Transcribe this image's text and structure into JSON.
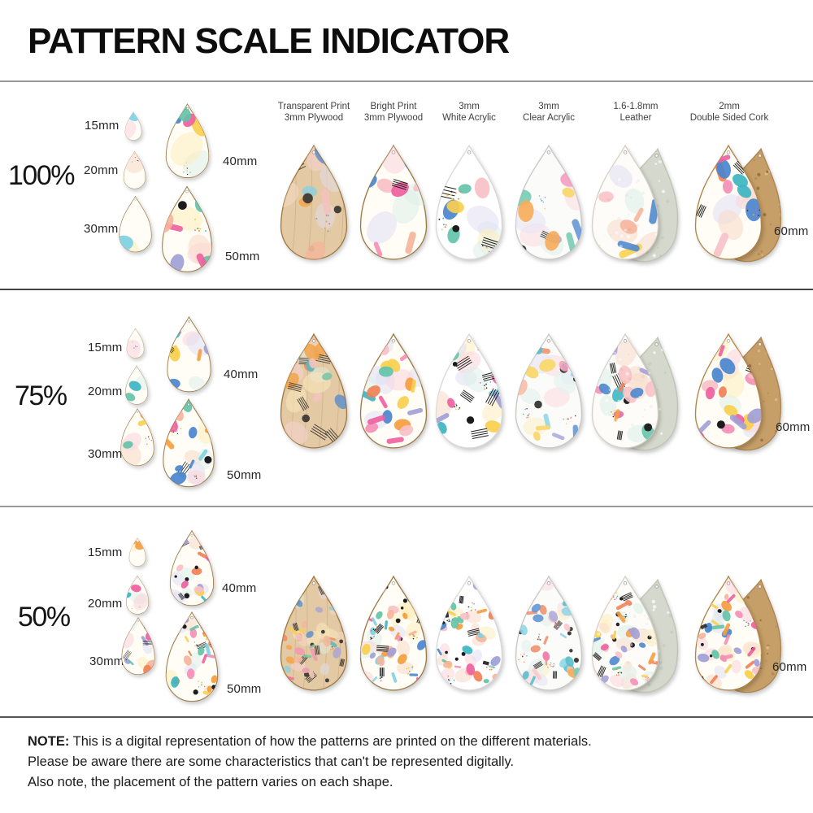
{
  "title": "PATTERN SCALE INDICATOR",
  "materials": [
    {
      "id": "transparent-plywood",
      "line1": "Transparent Print",
      "line2": "3mm Plywood"
    },
    {
      "id": "bright-plywood",
      "line1": "Bright Print",
      "line2": "3mm Plywood"
    },
    {
      "id": "white-acrylic",
      "line1": "3mm",
      "line2": "White Acrylic"
    },
    {
      "id": "clear-acrylic",
      "line1": "3mm",
      "line2": "Clear Acrylic"
    },
    {
      "id": "leather",
      "line1": "1.6-1.8mm",
      "line2": "Leather",
      "back": "leather-back"
    },
    {
      "id": "cork",
      "line1": "2mm",
      "line2": "Double Sided Cork",
      "back": "cork-back"
    }
  ],
  "rows": [
    {
      "scale_label": "100%",
      "scale": 1
    },
    {
      "scale_label": "75%",
      "scale": 0.75
    },
    {
      "scale_label": "50%",
      "scale": 0.5
    }
  ],
  "size_samples": [
    {
      "label": "15mm",
      "mm": 15
    },
    {
      "label": "20mm",
      "mm": 20
    },
    {
      "label": "30mm",
      "mm": 30
    },
    {
      "label": "40mm",
      "mm": 40
    },
    {
      "label": "50mm",
      "mm": 50
    }
  ],
  "main_size_label": "60mm",
  "main_size_mm": 60,
  "note": {
    "label": "NOTE:",
    "line1": "This is a digital representation of how the patterns are printed on the different materials.",
    "line2": "Please be aware there are some characteristics that can't be represented digitally.",
    "line3": "Also note, the placement of the pattern varies on each shape."
  },
  "pattern": {
    "colors": [
      "#ee5f9e",
      "#f48fb5",
      "#f7c1c6",
      "#f08055",
      "#f59d3d",
      "#f8cf4e",
      "#3db4c2",
      "#63c3a8",
      "#4a86ce",
      "#a19fd6",
      "#7fd0e4",
      "#f6b49b"
    ],
    "washes": [
      "#f9dccb",
      "#fbd7dd",
      "#fdeec2",
      "#dff0ea",
      "#e3e1f3"
    ],
    "speckles": [
      "#f2863c",
      "#222222",
      "#38b3c3",
      "#e85d8a",
      "#f0c93f"
    ]
  },
  "material_styles": {
    "transparent-plywood": {
      "bg": "#e3c9a4",
      "edge": "#a0793f",
      "ink_opacity": 0.78,
      "grain": "#c29c6b",
      "pattern": true
    },
    "bright-plywood": {
      "bg": "#fffdf6",
      "edge": "#9c7a45",
      "ink_opacity": 1,
      "pattern": true
    },
    "white-acrylic": {
      "bg": "#ffffff",
      "edge": "#d9d9d9",
      "ink_opacity": 1,
      "pattern": true
    },
    "clear-acrylic": {
      "bg": "#fbfbfa",
      "edge": "#c8c8c6",
      "ink_opacity": 0.84,
      "pattern": true
    },
    "leather": {
      "bg": "#fdfcf8",
      "edge": "#d6d1c6",
      "ink_opacity": 0.96,
      "pattern": true,
      "noise": [
        "rgba(0,0,0,0.045)",
        "rgba(255,255,255,0.5)"
      ]
    },
    "leather-back": {
      "bg": "#d5d8cc",
      "edge": "#bfc2b4",
      "ink_opacity": 1,
      "pattern": false,
      "noise": [
        "rgba(255,255,255,0.7)",
        "rgba(0,0,0,0.05)"
      ]
    },
    "cork": {
      "bg": "#fffdf6",
      "edge": "#b08549",
      "ink_opacity": 1,
      "pattern": true
    },
    "cork-back": {
      "bg": "#c69e67",
      "edge": "#a8824e",
      "ink_opacity": 1,
      "pattern": false,
      "noise": [
        "#b58a52",
        "#d9ba86",
        "#9a7340",
        "#caa06a"
      ]
    }
  },
  "divider_colors": {
    "top": "#999999",
    "row1": "#444444",
    "row2": "#999999",
    "row3": "#555555"
  }
}
